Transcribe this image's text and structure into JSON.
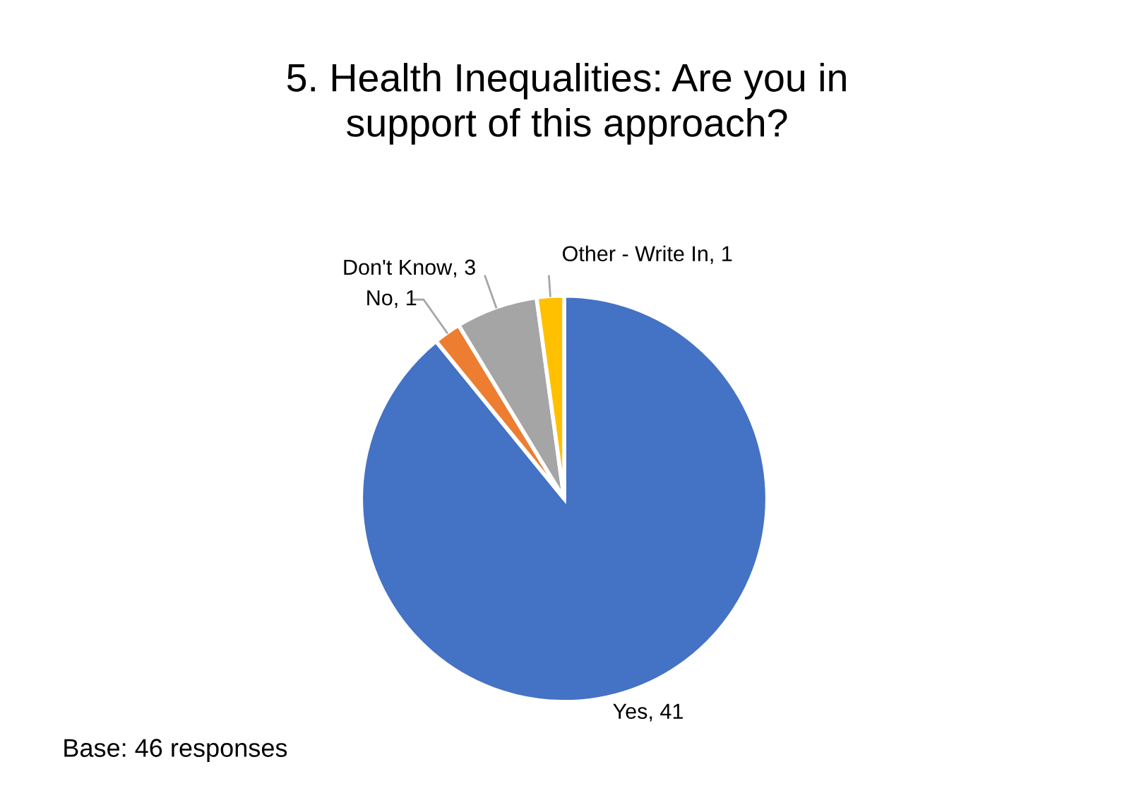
{
  "chart_data": {
    "type": "pie",
    "title": "5. Health Inequalities: Are you in support of this approach?",
    "categories": [
      "Yes",
      "No",
      "Don't Know",
      "Other - Write In"
    ],
    "values": [
      41,
      1,
      3,
      1
    ],
    "colors": [
      "#4472c4",
      "#ed7d31",
      "#a5a5a5",
      "#ffc000"
    ],
    "value_labels": [
      ", 41",
      ", 1",
      ", 3",
      ", 1"
    ],
    "legend": false,
    "annotations": [
      "Base: 46 responses"
    ]
  }
}
